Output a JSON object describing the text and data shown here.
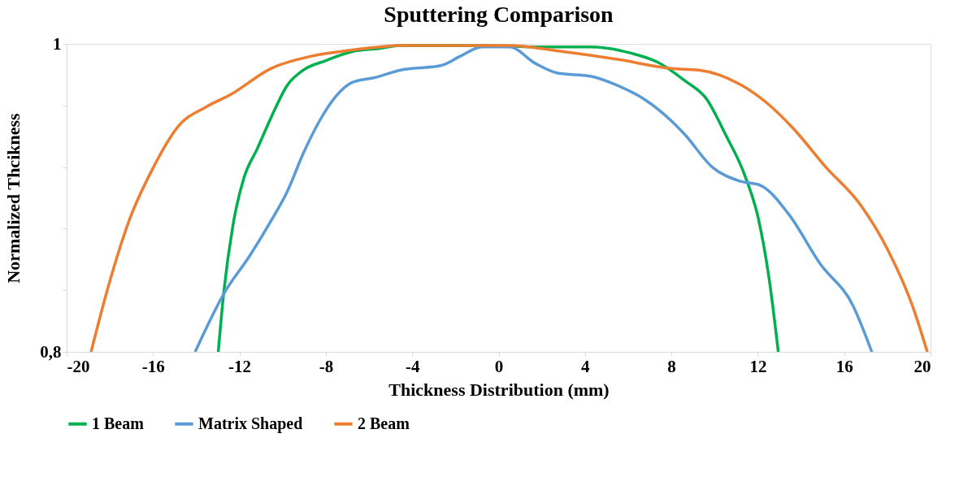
{
  "chart_data": {
    "type": "line",
    "title": "Sputtering Comparison",
    "xlabel": "Thickness Distribution (mm)",
    "ylabel": "Normalized Thcikness",
    "xlim": [
      -20,
      20
    ],
    "xticks": [
      -20,
      -16,
      -12,
      -8,
      -4,
      0,
      4,
      8,
      12,
      16,
      20
    ],
    "ylim": [
      0.8,
      1
    ],
    "yticks": [
      {
        "value": 0.8,
        "label": "0,8"
      },
      {
        "value": 0.84,
        "label": null
      },
      {
        "value": 0.88,
        "label": null
      },
      {
        "value": 0.92,
        "label": null
      },
      {
        "value": 0.96,
        "label": null
      },
      1
    ],
    "grid": false,
    "legend": "bottom",
    "marker": "none",
    "line_style": "solid",
    "series": [
      {
        "name": "1 Beam",
        "color": "#00b050",
        "x": [
          -12.98,
          -12.73,
          -12.29,
          -11.79,
          -11.17,
          -10.54,
          -9.79,
          -9.04,
          -8.03,
          -6.78,
          -5.53,
          -4.53,
          -0.77,
          1.74,
          4.25,
          6.13,
          7.38,
          8.63,
          9.64,
          10.51,
          11.39,
          12.02,
          12.52,
          12.95
        ],
        "values": [
          0.8,
          0.838,
          0.883,
          0.913,
          0.932,
          0.952,
          0.973,
          0.983,
          0.989,
          0.995,
          0.997,
          0.999,
          0.999,
          0.998,
          0.998,
          0.994,
          0.988,
          0.976,
          0.964,
          0.941,
          0.915,
          0.887,
          0.848,
          0.8
        ]
      },
      {
        "name": "Matrix Shaped",
        "color": "#5b9bd5",
        "x": [
          -14.05,
          -12.67,
          -11.54,
          -10.54,
          -9.79,
          -9.04,
          -8.29,
          -7.53,
          -6.78,
          -5.78,
          -4.53,
          -2.65,
          -1.77,
          -0.77,
          0.49,
          1.74,
          2.74,
          4.25,
          5.5,
          6.75,
          8.0,
          8.63,
          9.89,
          11.14,
          12.14,
          13.4,
          14.9,
          16.41,
          17.28
        ],
        "values": [
          0.8,
          0.839,
          0.862,
          0.885,
          0.904,
          0.929,
          0.95,
          0.966,
          0.975,
          0.978,
          0.983,
          0.986,
          0.992,
          0.998,
          0.998,
          0.987,
          0.981,
          0.979,
          0.973,
          0.964,
          0.95,
          0.941,
          0.92,
          0.911,
          0.908,
          0.89,
          0.857,
          0.83,
          0.8
        ]
      },
      {
        "name": "2 Beam",
        "color": "#ed7d31",
        "x": [
          -18.87,
          -18.06,
          -17.06,
          -16.05,
          -14.8,
          -13.55,
          -12.42,
          -10.54,
          -8.66,
          -6.78,
          -5.53,
          -4.53,
          0.49,
          2.99,
          5.5,
          8.0,
          9.26,
          11.14,
          12.39,
          13.65,
          15.15,
          16.78,
          18.03,
          19.16,
          19.85
        ],
        "values": [
          0.8,
          0.843,
          0.887,
          0.918,
          0.947,
          0.959,
          0.967,
          0.984,
          0.992,
          0.996,
          0.998,
          0.999,
          0.999,
          0.995,
          0.99,
          0.984,
          0.983,
          0.974,
          0.962,
          0.945,
          0.92,
          0.895,
          0.866,
          0.83,
          0.8
        ]
      }
    ]
  }
}
